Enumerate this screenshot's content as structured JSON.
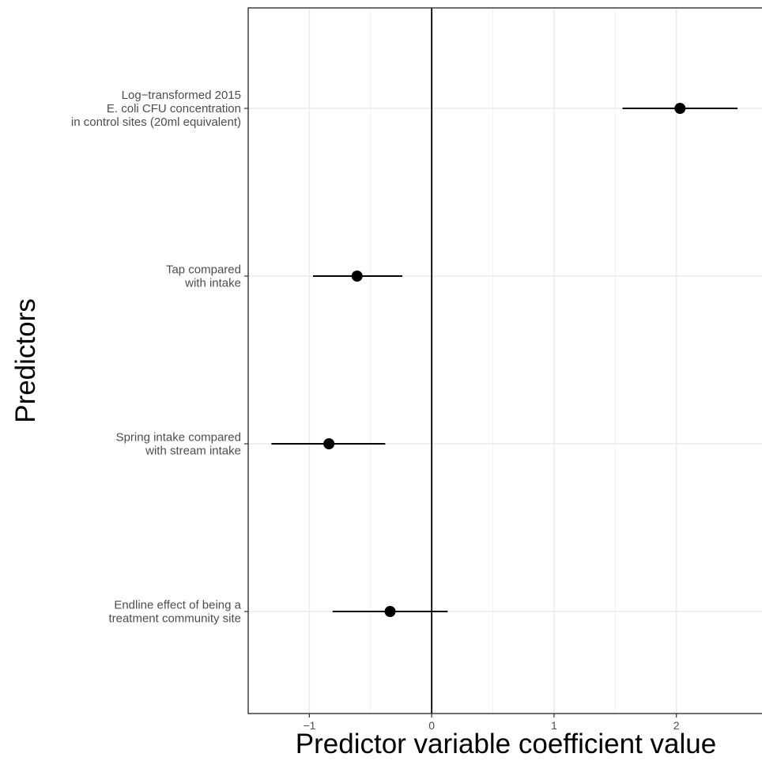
{
  "chart_data": {
    "type": "scatter",
    "subtype": "coefficient-plot",
    "xlabel": "Predictor variable coefficient value",
    "ylabel": "Predictors",
    "xlim": [
      -1.5,
      2.7
    ],
    "x_ticks": [
      -1,
      0,
      1,
      2
    ],
    "x_tick_labels": [
      "−1",
      "0",
      "1",
      "2"
    ],
    "reference_line_x": 0,
    "grid": true,
    "legend": "none",
    "predictors": [
      {
        "label_lines": [
          "Log−transformed 2015",
          "E. coli CFU concentration",
          "in control sites (20ml equivalent)"
        ],
        "estimate": 2.03,
        "ci_low": 1.56,
        "ci_high": 2.5
      },
      {
        "label_lines": [
          "Tap compared",
          "with intake"
        ],
        "estimate": -0.61,
        "ci_low": -0.97,
        "ci_high": -0.24
      },
      {
        "label_lines": [
          "Spring intake compared",
          "with stream intake"
        ],
        "estimate": -0.84,
        "ci_low": -1.31,
        "ci_high": -0.38
      },
      {
        "label_lines": [
          "Endline effect of being a",
          "treatment community site"
        ],
        "estimate": -0.34,
        "ci_low": -0.81,
        "ci_high": 0.13
      }
    ],
    "colors": {
      "point": "#000000",
      "grid_major": "#ebebeb",
      "grid_minor": "#f3f3f3",
      "panel_border": "#333333",
      "axis_text": "#4d4d4d"
    }
  }
}
